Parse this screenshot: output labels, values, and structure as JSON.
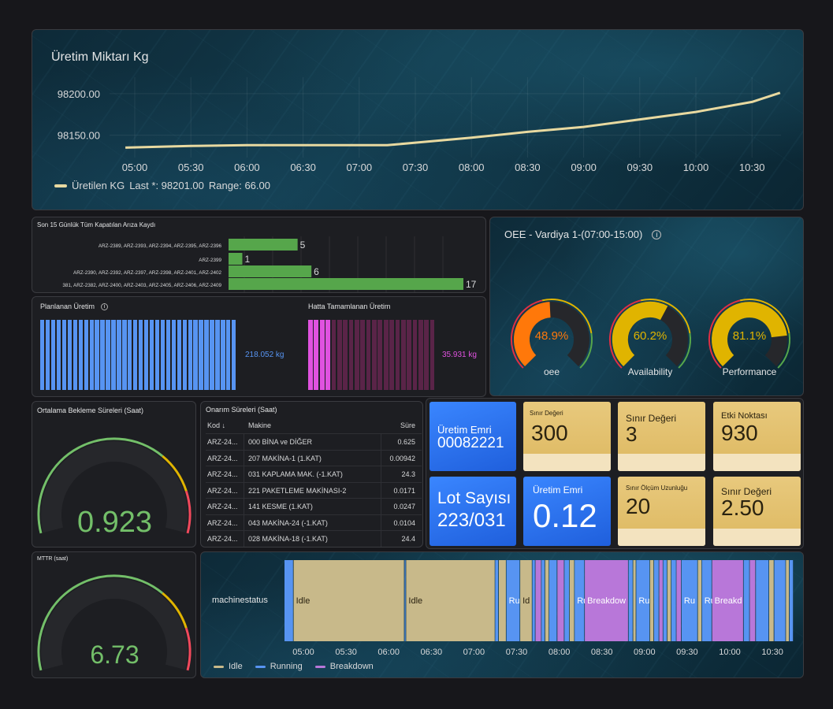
{
  "production": {
    "title": "Üretim Miktarı Kg",
    "y_ticks": [
      "98200.00",
      "98150.00"
    ],
    "x_ticks": [
      "05:00",
      "05:30",
      "06:00",
      "06:30",
      "07:00",
      "07:30",
      "08:00",
      "08:30",
      "09:00",
      "09:30",
      "10:00",
      "10:30"
    ],
    "legend_name": "Üretilen KG",
    "legend_last": "Last *: 98201.00",
    "legend_range": "Range: 66.00",
    "line_color": "#e8d9a0"
  },
  "fault_log": {
    "title": "Son 15 Günlük Tüm Kapatılan Arıza Kaydı",
    "bar_color": "#56a64b"
  },
  "planned": {
    "title": "Planlanan Üretim",
    "value": "218.052 kg",
    "color": "#5794f2"
  },
  "completed": {
    "title": "Hatta Tamamlanan Üretim",
    "value": "35.931 kg",
    "color": "#e052e0"
  },
  "oee": {
    "title": "OEE - Vardiya 1-(07:00-15:00)",
    "gauges": [
      {
        "label": "oee",
        "value": "48.9%",
        "color": "#ff780a"
      },
      {
        "label": "Availability",
        "value": "60.2%",
        "color": "#e0b400"
      },
      {
        "label": "Performance",
        "value": "81.1%",
        "color": "#e0b400"
      }
    ]
  },
  "wait_time": {
    "title": "Ortalama Bekleme Süreleri (Saat)",
    "value": "0.923"
  },
  "mttr": {
    "title": "MTTR (saat)",
    "value": "6.73"
  },
  "repair": {
    "title": "Onarım Süreleri (Saat)",
    "headers": {
      "kod": "Kod",
      "makine": "Makine",
      "sure": "Süre"
    },
    "rows": [
      {
        "kod": "ARZ-24...",
        "makine": "000 BİNA ve DİĞER",
        "sure": "0.625"
      },
      {
        "kod": "ARZ-24...",
        "makine": "207 MAKİNA-1 (1.KAT)",
        "sure": "0.00942"
      },
      {
        "kod": "ARZ-24...",
        "makine": "031 KAPLAMA MAK. (-1.KAT)",
        "sure": "24.3"
      },
      {
        "kod": "ARZ-24...",
        "makine": "221 PAKETLEME MAKİNASI-2",
        "sure": "0.0171"
      },
      {
        "kod": "ARZ-24...",
        "makine": "141 KESME (1.KAT)",
        "sure": "0.0247"
      },
      {
        "kod": "ARZ-24...",
        "makine": "043 MAKİNA-24 (-1.KAT)",
        "sure": "0.0104"
      },
      {
        "kod": "ARZ-24...",
        "makine": "028 MAKİNA-18 (-1.KAT)",
        "sure": "24.4"
      }
    ]
  },
  "stats": {
    "work_order_label": "Üretim Emri",
    "work_order_value": "00082221",
    "limit1_label": "Sınır Değeri",
    "limit1_value": "300",
    "limit2_label": "Sınır Değeri",
    "limit2_value": "3",
    "effect_label": "Etki Noktası",
    "effect_value": "930",
    "lot_label": "Lot Sayısı",
    "lot_value": "223/031",
    "work_order2_label": "Üretim Emri",
    "work_order2_value": "0.12",
    "measure_label": "Sınır Ölçüm Uzunluğu",
    "measure_value": "20",
    "limit3_label": "Sınır Değeri",
    "limit3_value": "2.50"
  },
  "machine": {
    "row_label": "machinestatus",
    "x_ticks": [
      "05:00",
      "05:30",
      "06:00",
      "06:30",
      "07:00",
      "07:30",
      "08:00",
      "08:30",
      "09:00",
      "09:30",
      "10:00",
      "10:30"
    ],
    "legend": [
      {
        "name": "Idle",
        "color": "#c8b98a"
      },
      {
        "name": "Running",
        "color": "#5794f2"
      },
      {
        "name": "Breakdown",
        "color": "#b877d9"
      }
    ],
    "segment_labels": {
      "idle": "Idle",
      "run": "Ru",
      "id": "Id",
      "breakdown": "Breakdow",
      "breakd": "Breakd"
    }
  },
  "chart_data": [
    {
      "type": "line",
      "title": "Üretim Miktarı Kg",
      "series": [
        {
          "name": "Üretilen KG",
          "x": [
            "04:55",
            "05:30",
            "06:00",
            "06:30",
            "07:00",
            "07:15",
            "07:30",
            "08:00",
            "08:30",
            "09:00",
            "09:30",
            "10:00",
            "10:30",
            "10:45"
          ],
          "values": [
            98135,
            98137,
            98138,
            98138,
            98138,
            98138,
            98141,
            98147,
            98154,
            98160,
            98169,
            98178,
            98190,
            98201
          ]
        }
      ],
      "ylim": [
        98125,
        98215
      ]
    },
    {
      "type": "bar",
      "title": "Son 15 Günlük Tüm Kapatılan Arıza Kaydı",
      "categories": [
        "ARZ-2389, ARZ-2393, ARZ-2394, ARZ-2395, ARZ-2396",
        "ARZ-2399",
        "ARZ-2390, ARZ-2392, ARZ-2397, ARZ-2398, ARZ-2401, ARZ-2402",
        "381, ARZ-2382, ARZ-2400, ARZ-2403, ARZ-2405, ARZ-2406, ARZ-2409"
      ],
      "values": [
        5,
        1,
        6,
        17
      ],
      "xlim": [
        0,
        17
      ]
    }
  ]
}
